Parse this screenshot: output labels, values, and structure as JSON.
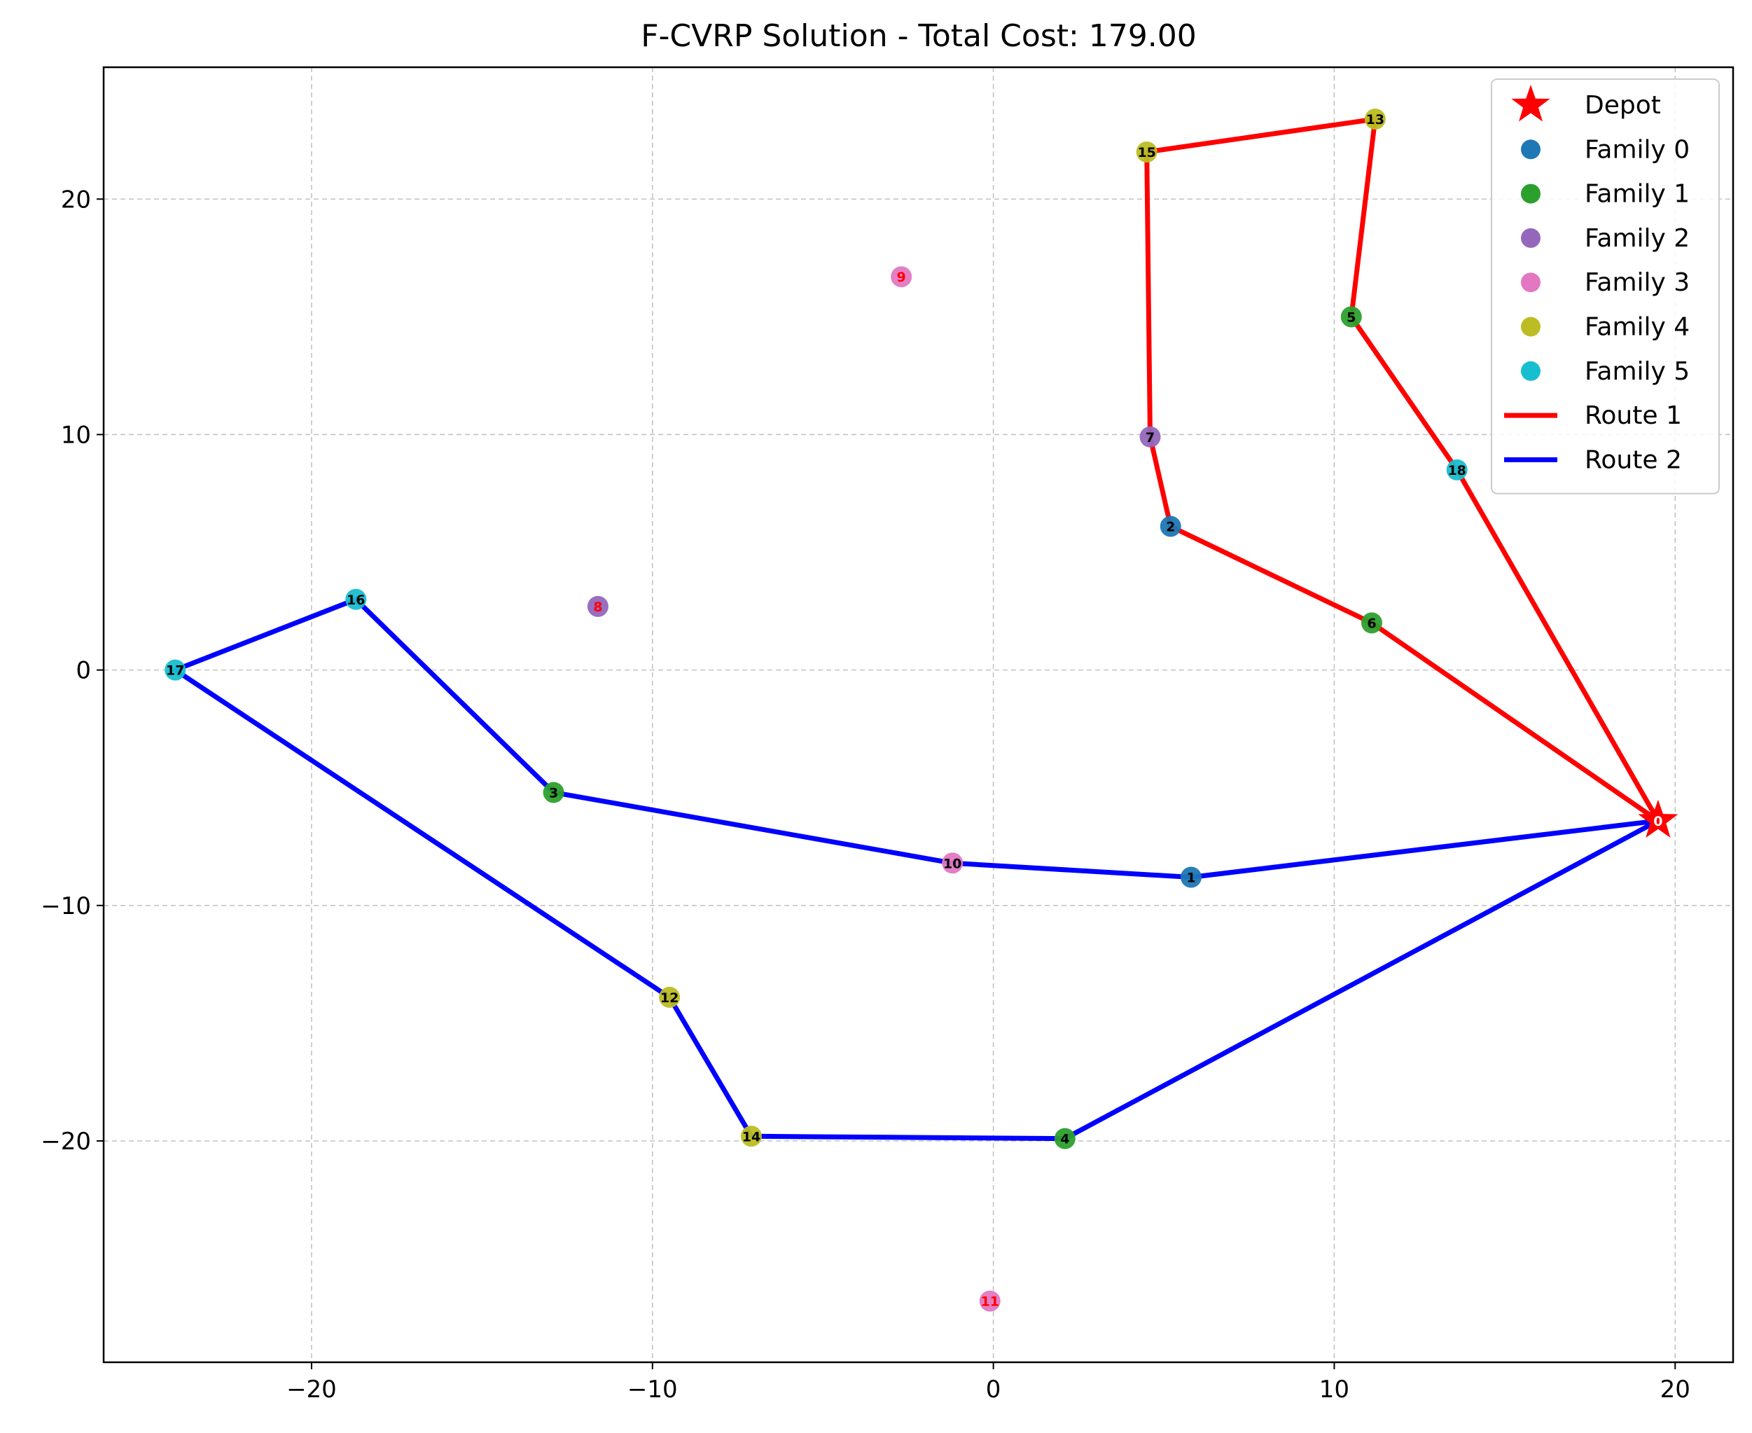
{
  "chart_data": {
    "type": "scatter",
    "title": "F-CVRP Solution - Total Cost: 179.00",
    "xlabel": "",
    "ylabel": "",
    "xlim": [
      -26.1,
      21.7
    ],
    "ylim": [
      -29.4,
      25.6
    ],
    "xticks": [
      -20,
      -10,
      0,
      10,
      20
    ],
    "yticks": [
      -20,
      -10,
      0,
      10,
      20
    ],
    "xtick_labels": [
      "−20",
      "−10",
      "0",
      "10",
      "20"
    ],
    "ytick_labels": [
      "−20",
      "−10",
      "0",
      "10",
      "20"
    ],
    "grid": true,
    "legend_placement": "top-right",
    "depot": {
      "label": "Depot",
      "node": "0",
      "x": 19.5,
      "y": -6.4,
      "color": "#ff0000"
    },
    "families": [
      {
        "name": "Family 0",
        "color": "#1f77b4",
        "nodes": [
          {
            "id": "1",
            "x": 5.8,
            "y": -8.8,
            "label_color": "#000000"
          },
          {
            "id": "2",
            "x": 5.2,
            "y": 6.1,
            "label_color": "#000000"
          }
        ]
      },
      {
        "name": "Family 1",
        "color": "#2ca02c",
        "nodes": [
          {
            "id": "3",
            "x": -12.9,
            "y": -5.2,
            "label_color": "#000000"
          },
          {
            "id": "4",
            "x": 2.1,
            "y": -19.9,
            "label_color": "#000000"
          },
          {
            "id": "5",
            "x": 10.5,
            "y": 15.0,
            "label_color": "#000000"
          },
          {
            "id": "6",
            "x": 11.1,
            "y": 2.0,
            "label_color": "#000000"
          }
        ]
      },
      {
        "name": "Family 2",
        "color": "#9467bd",
        "nodes": [
          {
            "id": "7",
            "x": 4.6,
            "y": 9.9,
            "label_color": "#000000"
          },
          {
            "id": "8",
            "x": -11.6,
            "y": 2.7,
            "label_color": "#ff0000"
          }
        ]
      },
      {
        "name": "Family 3",
        "color": "#e377c2",
        "nodes": [
          {
            "id": "9",
            "x": -2.7,
            "y": 16.7,
            "label_color": "#ff0000"
          },
          {
            "id": "10",
            "x": -1.2,
            "y": -8.2,
            "label_color": "#000000"
          },
          {
            "id": "11",
            "x": -0.1,
            "y": -26.8,
            "label_color": "#ff0000"
          }
        ]
      },
      {
        "name": "Family 4",
        "color": "#bcbd22",
        "nodes": [
          {
            "id": "12",
            "x": -9.5,
            "y": -13.9,
            "label_color": "#000000"
          },
          {
            "id": "13",
            "x": 11.2,
            "y": 23.4,
            "label_color": "#000000"
          },
          {
            "id": "14",
            "x": -7.1,
            "y": -19.8,
            "label_color": "#000000"
          },
          {
            "id": "15",
            "x": 4.5,
            "y": 22.0,
            "label_color": "#000000"
          }
        ]
      },
      {
        "name": "Family 5",
        "color": "#17becf",
        "nodes": [
          {
            "id": "16",
            "x": -18.7,
            "y": 3.0,
            "label_color": "#000000"
          },
          {
            "id": "17",
            "x": -24.0,
            "y": 0.0,
            "label_color": "#000000"
          },
          {
            "id": "18",
            "x": 13.6,
            "y": 8.5,
            "label_color": "#000000"
          }
        ]
      }
    ],
    "routes": [
      {
        "name": "Route 1",
        "color": "#ff0000",
        "sequence": [
          "0",
          "6",
          "2",
          "7",
          "15",
          "13",
          "5",
          "18",
          "0"
        ]
      },
      {
        "name": "Route 2",
        "color": "#0000ff",
        "sequence": [
          "0",
          "1",
          "10",
          "3",
          "16",
          "17",
          "12",
          "14",
          "4",
          "0"
        ]
      }
    ],
    "legend": [
      "Depot",
      "Family 0",
      "Family 1",
      "Family 2",
      "Family 3",
      "Family 4",
      "Family 5",
      "Route 1",
      "Route 2"
    ]
  }
}
